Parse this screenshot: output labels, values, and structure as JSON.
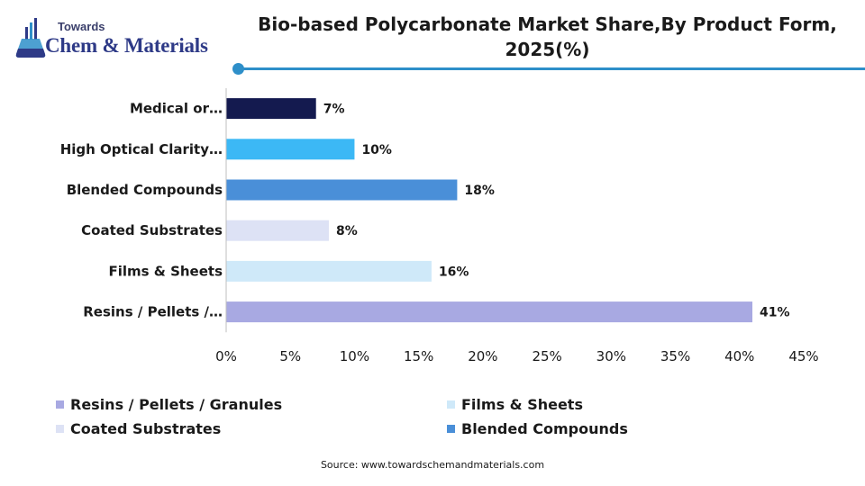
{
  "logo": {
    "small_text": "Towards",
    "big_text": "Chem & Materials",
    "icon": "flask-chart-icon",
    "color": "#2e3a87"
  },
  "header": {
    "title_line1": "Bio-based Polycarbonate Market Share,By Product Form,",
    "title_line2": "2025(%)",
    "accent_color": "#2e8fc9"
  },
  "chart_data": {
    "type": "bar",
    "orientation": "horizontal",
    "categories": [
      "Medical or…",
      "High Optical Clarity…",
      "Blended Compounds",
      "Coated Substrates",
      "Films & Sheets",
      "Resins / Pellets /…"
    ],
    "values": [
      7,
      10,
      18,
      8,
      16,
      41
    ],
    "value_labels": [
      "7%",
      "10%",
      "18%",
      "8%",
      "16%",
      "41%"
    ],
    "colors": [
      "#141a4f",
      "#3cb8f5",
      "#4a8fd8",
      "#dde2f5",
      "#cfe9f9",
      "#a8a9e2"
    ],
    "xlim": [
      0,
      45
    ],
    "xticks": [
      "0%",
      "5%",
      "10%",
      "15%",
      "20%",
      "25%",
      "30%",
      "35%",
      "40%",
      "45%"
    ],
    "xlabel": "",
    "ylabel": "",
    "grid": false,
    "legend_position": "bottom"
  },
  "legend": {
    "items": [
      {
        "label": "Resins / Pellets / Granules",
        "color": "#a8a9e2"
      },
      {
        "label": "Films & Sheets",
        "color": "#cfe9f9"
      },
      {
        "label": "Coated Substrates",
        "color": "#dde2f5"
      },
      {
        "label": "Blended Compounds",
        "color": "#4a8fd8"
      }
    ]
  },
  "footer": {
    "source": "Source: www.towardschemandmaterials.com"
  }
}
